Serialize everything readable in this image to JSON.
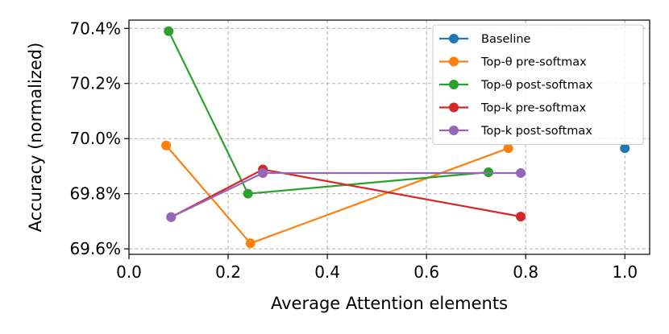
{
  "chart_data": {
    "type": "line",
    "title": "",
    "xlabel": "Average Attention elements",
    "ylabel": "Accuracy (normalized)",
    "xlim": [
      0.0,
      1.05
    ],
    "ylim": [
      69.58,
      70.43
    ],
    "xticks": [
      0.0,
      0.2,
      0.4,
      0.6,
      0.8,
      1.0
    ],
    "xtick_labels": [
      "0.0",
      "0.2",
      "0.4",
      "0.6",
      "0.8",
      "1.0"
    ],
    "yticks": [
      69.6,
      69.8,
      70.0,
      70.2,
      70.4
    ],
    "ytick_labels": [
      "69.6%",
      "69.8%",
      "70.0%",
      "70.2%",
      "70.4%"
    ],
    "grid": true,
    "legend_position": "top-right",
    "series": [
      {
        "name": "Baseline",
        "color": "#1f77b4",
        "x": [
          1.0
        ],
        "y": [
          69.965
        ]
      },
      {
        "name": "Top-θ pre-softmax",
        "color": "#ff7f0e",
        "x": [
          0.075,
          0.245,
          0.765
        ],
        "y": [
          69.975,
          69.62,
          69.965
        ]
      },
      {
        "name": "Top-θ post-softmax",
        "color": "#2ca02c",
        "x": [
          0.08,
          0.24,
          0.725
        ],
        "y": [
          70.39,
          69.8,
          69.878
        ]
      },
      {
        "name": "Top-k pre-softmax",
        "color": "#d62728",
        "x": [
          0.085,
          0.27,
          0.79
        ],
        "y": [
          69.715,
          69.888,
          69.717
        ]
      },
      {
        "name": "Top-k post-softmax",
        "color": "#9467bd",
        "x": [
          0.085,
          0.27,
          0.79
        ],
        "y": [
          69.715,
          69.875,
          69.875
        ]
      }
    ]
  }
}
